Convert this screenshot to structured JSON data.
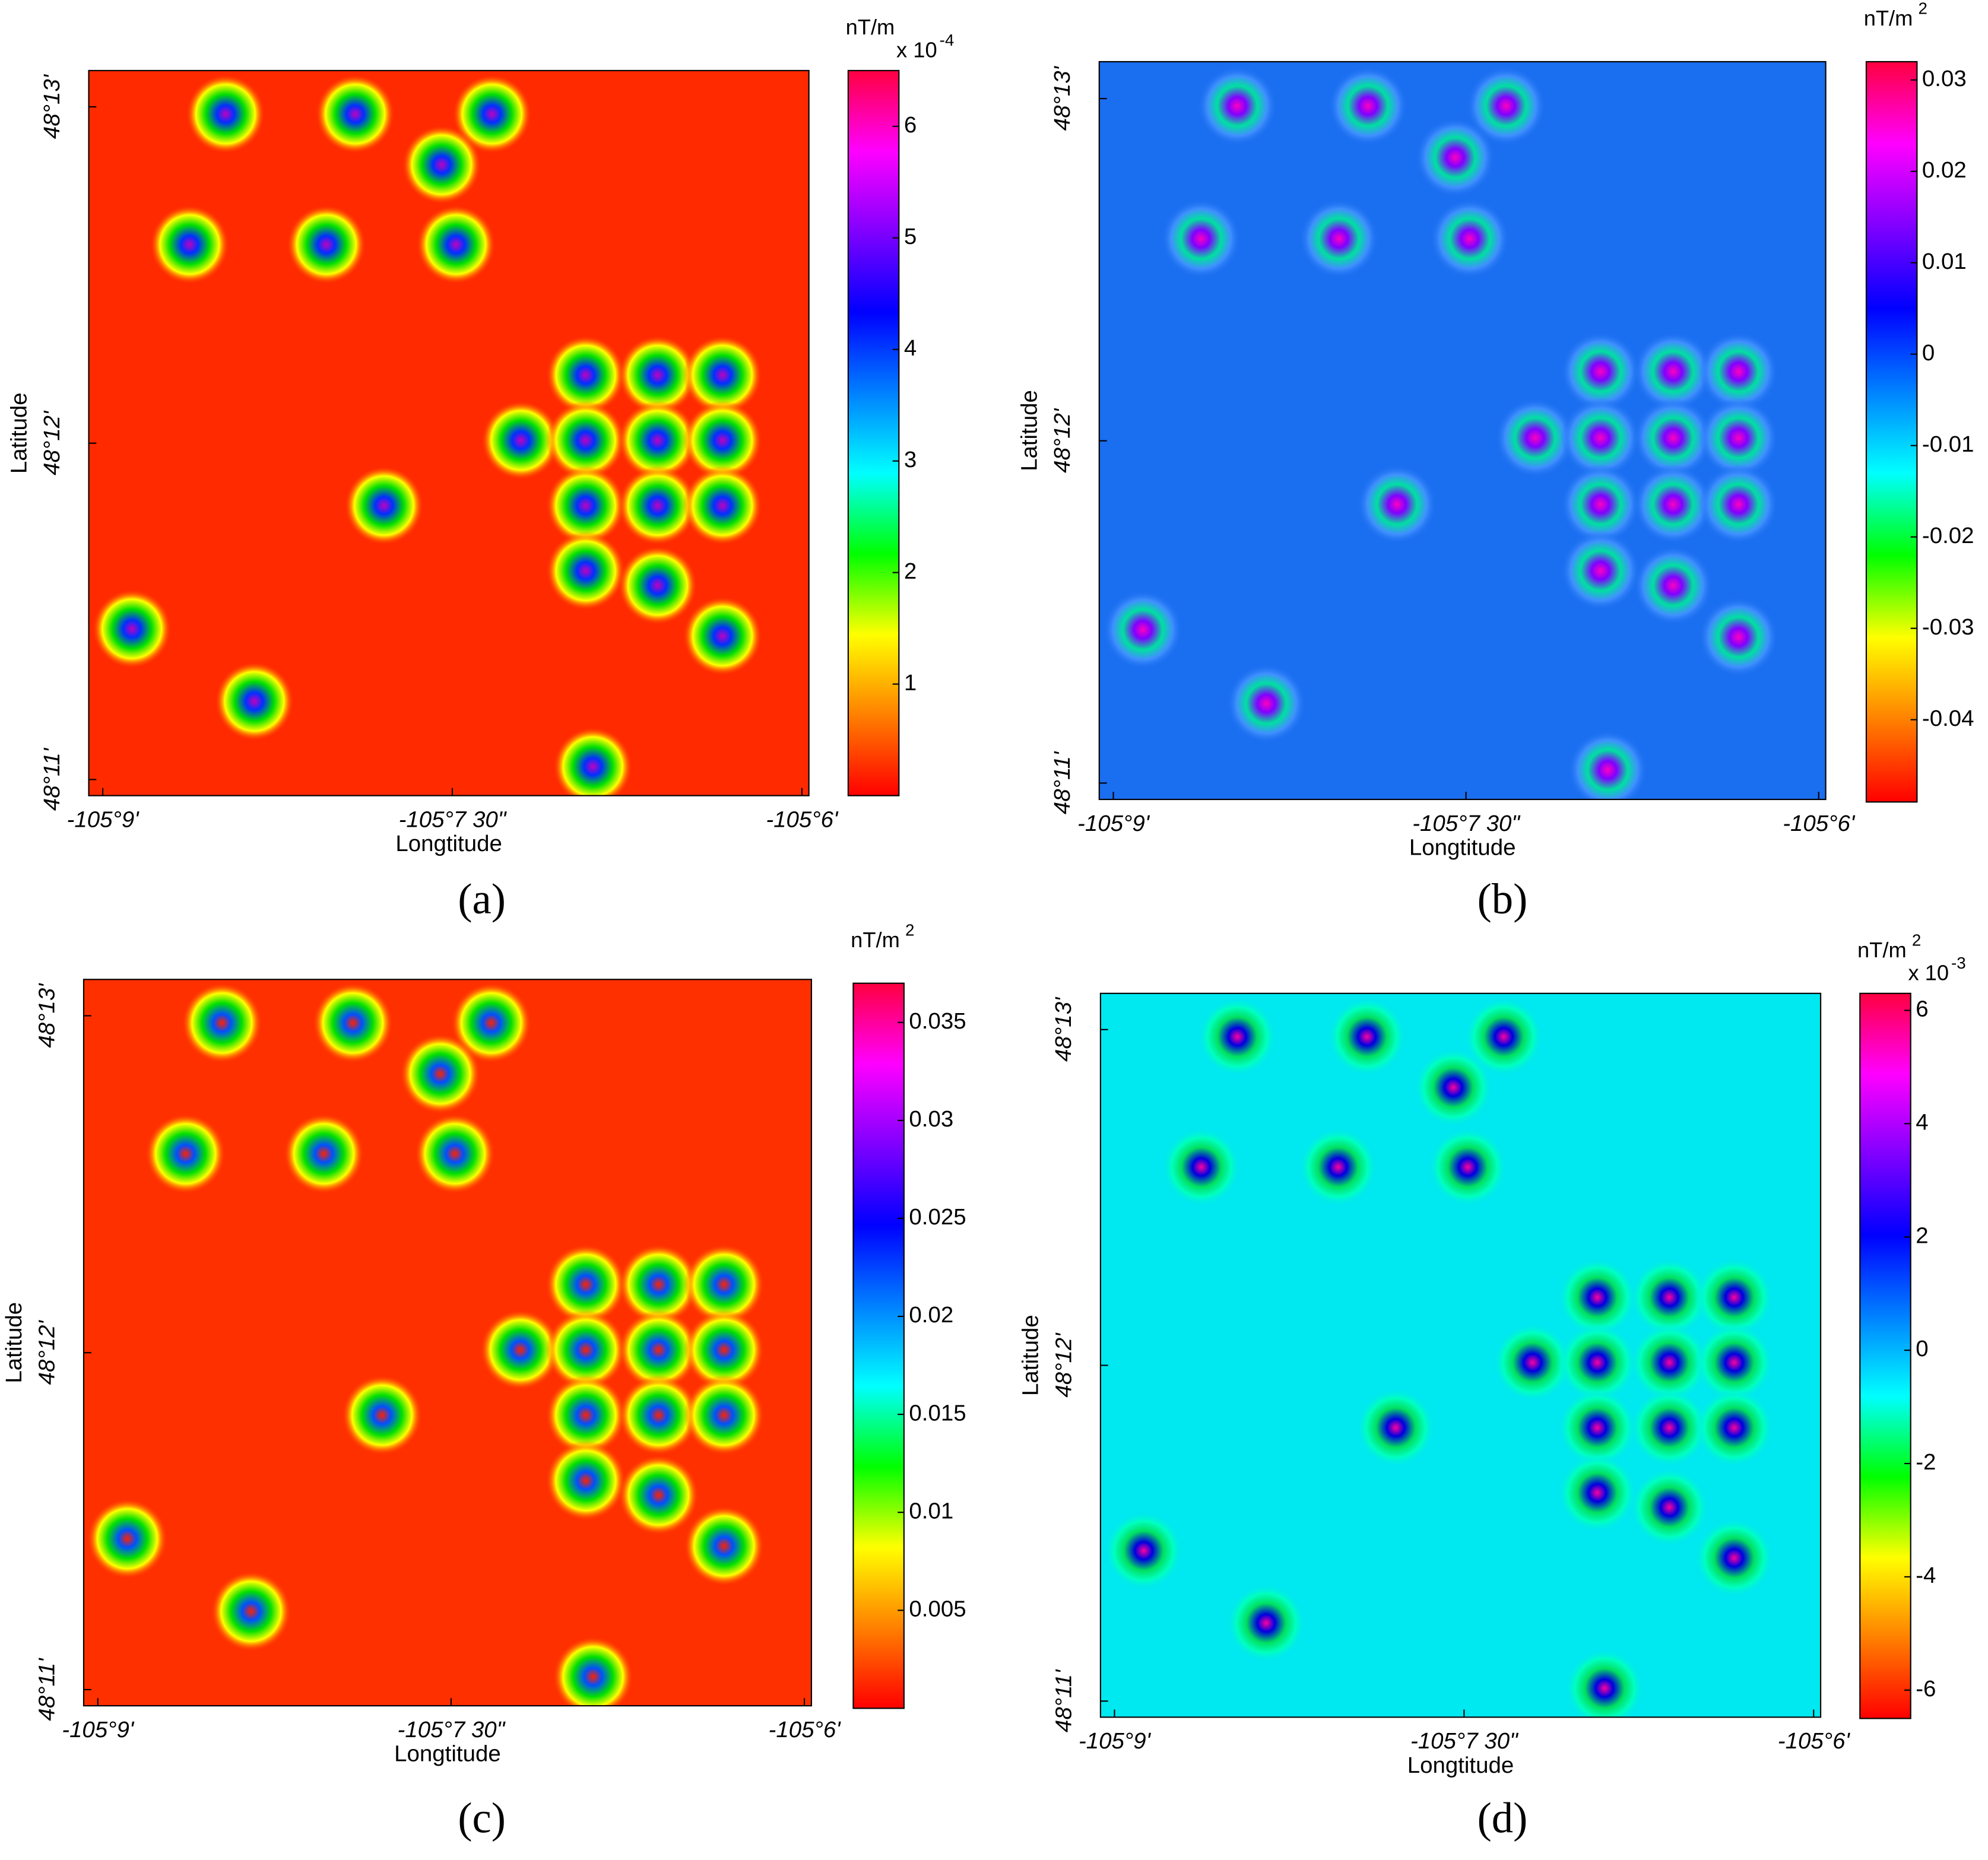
{
  "chart_data": [
    {
      "type": "heatmap",
      "label": "(a)",
      "xlabel": "Longtitude",
      "ylabel": "Latitude",
      "xlim": [
        -105.151,
        -105.0995
      ],
      "xticks": [
        {
          "value": -105.15,
          "label": "-105°9'"
        },
        {
          "value": -105.125,
          "label": "-105°7 30\""
        },
        {
          "value": -105.1,
          "label": "-105°6'"
        }
      ],
      "ylim": [
        48.1825,
        48.2185
      ],
      "yticks": [
        {
          "value": 48.1833,
          "label": "48°11'"
        },
        {
          "value": 48.2,
          "label": "48°12'"
        },
        {
          "value": 48.2167,
          "label": "48°13'"
        }
      ],
      "background": "#ff2a00",
      "colorbar": {
        "unit": "nT/m",
        "multiplier": "x 10",
        "multiplier_exponent": -4,
        "clim": [
          0,
          6.5
        ],
        "ticks": [
          1,
          2,
          3,
          4,
          5,
          6
        ]
      }
    },
    {
      "type": "heatmap",
      "label": "(b)",
      "xlabel": "Longtitude",
      "ylabel": "Latitude",
      "xlim": [
        -105.151,
        -105.0995
      ],
      "xticks": [
        {
          "value": -105.15,
          "label": "-105°9'"
        },
        {
          "value": -105.125,
          "label": "-105°7 30\""
        },
        {
          "value": -105.1,
          "label": "-105°6'"
        }
      ],
      "ylim": [
        48.1825,
        48.2185
      ],
      "yticks": [
        {
          "value": 48.1833,
          "label": "48°11'"
        },
        {
          "value": 48.2,
          "label": "48°12'"
        },
        {
          "value": 48.2167,
          "label": "48°13'"
        }
      ],
      "background": "#1a6ef0",
      "colorbar": {
        "unit": "nT/m",
        "unit_exponent": 2,
        "clim": [
          -0.049,
          0.032
        ],
        "ticks": [
          0.03,
          0.02,
          0.01,
          0,
          -0.01,
          -0.02,
          -0.03,
          -0.04
        ]
      }
    },
    {
      "type": "heatmap",
      "label": "(c)",
      "xlabel": "Longtitude",
      "ylabel": "Latitude",
      "xlim": [
        -105.151,
        -105.0995
      ],
      "xticks": [
        {
          "value": -105.15,
          "label": "-105°9'"
        },
        {
          "value": -105.125,
          "label": "-105°7 30\""
        },
        {
          "value": -105.1,
          "label": "-105°6'"
        }
      ],
      "ylim": [
        48.1825,
        48.2185
      ],
      "yticks": [
        {
          "value": 48.1833,
          "label": "48°11'"
        },
        {
          "value": 48.2,
          "label": "48°12'"
        },
        {
          "value": 48.2167,
          "label": "48°13'"
        }
      ],
      "background": "#ff3000",
      "colorbar": {
        "unit": "nT/m",
        "unit_exponent": 2,
        "clim": [
          0,
          0.037
        ],
        "ticks": [
          0.035,
          0.03,
          0.025,
          0.02,
          0.015,
          0.01,
          0.005
        ]
      }
    },
    {
      "type": "heatmap",
      "label": "(d)",
      "xlabel": "Longtitude",
      "ylabel": "Latitude",
      "xlim": [
        -105.151,
        -105.0995
      ],
      "xticks": [
        {
          "value": -105.15,
          "label": "-105°9'"
        },
        {
          "value": -105.125,
          "label": "-105°7 30\""
        },
        {
          "value": -105.1,
          "label": "-105°6'"
        }
      ],
      "ylim": [
        48.1825,
        48.2185
      ],
      "yticks": [
        {
          "value": 48.1833,
          "label": "48°11'"
        },
        {
          "value": 48.2,
          "label": "48°12'"
        },
        {
          "value": 48.2167,
          "label": "48°13'"
        }
      ],
      "background": "#00e8f0",
      "colorbar": {
        "unit": "nT/m",
        "unit_exponent": 2,
        "multiplier": "x 10",
        "multiplier_exponent": -3,
        "clim": [
          -6.5,
          6.3
        ],
        "ticks": [
          6,
          4,
          2,
          0,
          -2,
          -4,
          -6
        ]
      }
    }
  ],
  "colormap": [
    "#ff0000",
    "#ff8000",
    "#ffff00",
    "#00ff00",
    "#00ffff",
    "#0080ff",
    "#0000ff",
    "#8000ff",
    "#ff00ff",
    "#ff0040"
  ]
}
